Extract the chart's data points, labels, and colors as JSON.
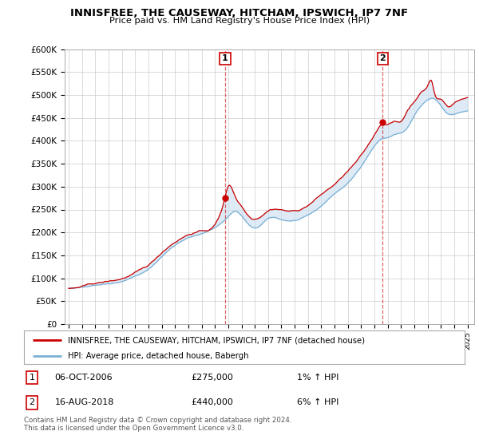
{
  "title": "INNISFREE, THE CAUSEWAY, HITCHAM, IPSWICH, IP7 7NF",
  "subtitle": "Price paid vs. HM Land Registry's House Price Index (HPI)",
  "legend_line1": "INNISFREE, THE CAUSEWAY, HITCHAM, IPSWICH, IP7 7NF (detached house)",
  "legend_line2": "HPI: Average price, detached house, Babergh",
  "annotation1_label": "1",
  "annotation1_date": "06-OCT-2006",
  "annotation1_price": "£275,000",
  "annotation1_hpi": "1% ↑ HPI",
  "annotation2_label": "2",
  "annotation2_date": "16-AUG-2018",
  "annotation2_price": "£440,000",
  "annotation2_hpi": "6% ↑ HPI",
  "footnote1": "Contains HM Land Registry data © Crown copyright and database right 2024.",
  "footnote2": "This data is licensed under the Open Government Licence v3.0.",
  "hpi_color": "#7ab0d4",
  "price_color": "#cc0000",
  "fill_color": "#c8dff0",
  "background_color": "#ffffff",
  "plot_bg_color": "#ffffff",
  "ylim": [
    0,
    600000
  ],
  "yticks": [
    0,
    50000,
    100000,
    150000,
    200000,
    250000,
    300000,
    350000,
    400000,
    450000,
    500000,
    550000,
    600000
  ],
  "ytick_labels": [
    "£0",
    "£50K",
    "£100K",
    "£150K",
    "£200K",
    "£250K",
    "£300K",
    "£350K",
    "£400K",
    "£450K",
    "£500K",
    "£550K",
    "£600K"
  ],
  "sale1_x": 2006.76,
  "sale1_y": 275000,
  "sale2_x": 2018.62,
  "sale2_y": 440000,
  "xtick_years": [
    1995,
    1996,
    1997,
    1998,
    1999,
    2000,
    2001,
    2002,
    2003,
    2004,
    2005,
    2006,
    2007,
    2008,
    2009,
    2010,
    2011,
    2012,
    2013,
    2014,
    2015,
    2016,
    2017,
    2018,
    2019,
    2020,
    2021,
    2022,
    2023,
    2024,
    2025
  ]
}
